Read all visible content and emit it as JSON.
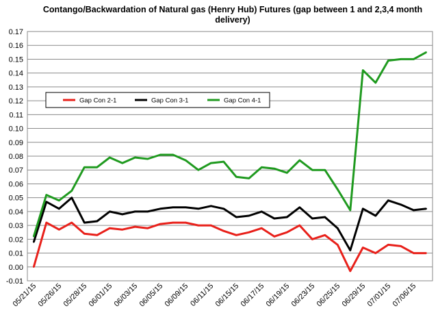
{
  "chart_data": {
    "type": "line",
    "title": "Contango/Backwardation of Natural gas (Henry Hub) Futures (gap between 1 and 2,3,4 month delivery)",
    "xlabel": "",
    "ylabel": "",
    "ylim": [
      -0.01,
      0.17
    ],
    "ytick_step": 0.01,
    "grid": true,
    "legend_position": "top-left",
    "x_tick_labels": [
      "05/21/15",
      "05/26/15",
      "05/28/15",
      "06/01/15",
      "06/03/15",
      "06/05/15",
      "06/09/15",
      "06/11/15",
      "06/15/15",
      "06/17/15",
      "06/19/15",
      "06/23/15",
      "06/25/15",
      "06/29/15",
      "07/01/15",
      "07/06/15"
    ],
    "series": [
      {
        "name": "Gap Con 2-1",
        "color": "#e8201a",
        "values": [
          0.0,
          0.032,
          0.027,
          0.032,
          0.024,
          0.023,
          0.028,
          0.027,
          0.029,
          0.028,
          0.031,
          0.032,
          0.032,
          0.03,
          0.03,
          0.026,
          0.023,
          0.025,
          0.028,
          0.022,
          0.025,
          0.03,
          0.02,
          0.023,
          0.016,
          -0.003,
          0.014,
          0.01,
          0.016,
          0.015,
          0.01,
          0.01
        ]
      },
      {
        "name": "Gap Con 3-1",
        "color": "#000000",
        "values": [
          0.018,
          0.047,
          0.042,
          0.05,
          0.032,
          0.033,
          0.04,
          0.038,
          0.04,
          0.04,
          0.042,
          0.043,
          0.043,
          0.042,
          0.044,
          0.042,
          0.036,
          0.037,
          0.04,
          0.035,
          0.036,
          0.043,
          0.035,
          0.036,
          0.028,
          0.012,
          0.042,
          0.037,
          0.048,
          0.045,
          0.041,
          0.042
        ]
      },
      {
        "name": "Gap Con 4-1",
        "color": "#1f9a1f",
        "values": [
          0.022,
          0.052,
          0.048,
          0.055,
          0.072,
          0.072,
          0.079,
          0.075,
          0.079,
          0.078,
          0.081,
          0.081,
          0.077,
          0.07,
          0.075,
          0.076,
          0.065,
          0.064,
          0.072,
          0.071,
          0.068,
          0.077,
          0.07,
          0.07,
          0.056,
          0.041,
          0.142,
          0.133,
          0.149,
          0.15,
          0.15,
          0.155
        ]
      }
    ]
  }
}
